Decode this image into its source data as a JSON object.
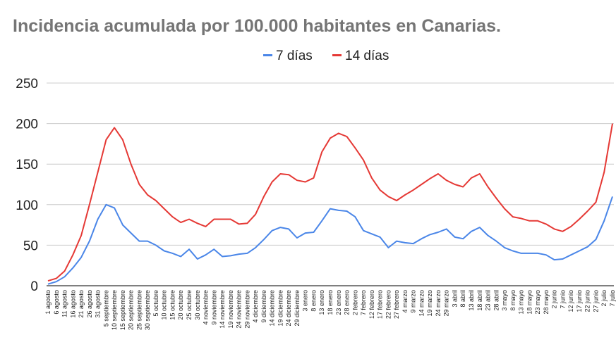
{
  "chart_data": {
    "type": "line",
    "title": "Incidencia acumulada por 100.000 habitantes en Canarias.",
    "xlabel": "",
    "ylabel": "",
    "ylim": [
      0,
      250
    ],
    "yticks": [
      0,
      50,
      100,
      150,
      200,
      250
    ],
    "grid": true,
    "legend_position": "top-center",
    "x": [
      "1 agosto",
      "6 agosto",
      "11 agosto",
      "16 agosto",
      "21 agosto",
      "26 agosto",
      "31 agosto",
      "5 septiembre",
      "10 septiembre",
      "15 septiembre",
      "20 septiembre",
      "25 septiembre",
      "30 septiembre",
      "5 octubre",
      "10 octubre",
      "15 octubre",
      "20 octubre",
      "25 octubre",
      "30 octubre",
      "4 noviembre",
      "9 noviembre",
      "14 noviembre",
      "19 noviembre",
      "24 noviembre",
      "29 noviembre",
      "4 diciembre",
      "9 diciembre",
      "14 diciembre",
      "19 diciembre",
      "24 diciembre",
      "29 diciembre",
      "3 enero",
      "8 enero",
      "13 enero",
      "18 enero",
      "23 enero",
      "28 enero",
      "2 febrero",
      "7 febrero",
      "12 febrero",
      "17 febrero",
      "22 febrero",
      "27 febrero",
      "4 marzo",
      "9 marzo",
      "14 marzo",
      "19 marzo",
      "24 marzo",
      "29 marzo",
      "3 abril",
      "8 abril",
      "13 abril",
      "18 abril",
      "23 abril",
      "28 abril",
      "3 mayo",
      "8 mayo",
      "13 mayo",
      "18 mayo",
      "23 mayo",
      "28 mayo",
      "2 junio",
      "7 junio",
      "12 junio",
      "17 junio",
      "22 junio",
      "27 junio",
      "2 julio",
      "7 julio"
    ],
    "series": [
      {
        "name": "7 días",
        "color": "#4a86e8",
        "values": [
          2,
          5,
          11,
          22,
          35,
          55,
          82,
          100,
          96,
          75,
          65,
          55,
          55,
          50,
          43,
          40,
          36,
          45,
          33,
          38,
          45,
          36,
          37,
          39,
          40,
          47,
          57,
          68,
          72,
          70,
          59,
          65,
          66,
          80,
          95,
          93,
          92,
          85,
          68,
          64,
          60,
          47,
          55,
          53,
          52,
          58,
          63,
          66,
          70,
          60,
          58,
          67,
          72,
          62,
          55,
          47,
          43,
          40,
          40,
          40,
          38,
          32,
          33,
          38,
          43,
          48,
          57,
          80,
          110
        ]
      },
      {
        "name": "14 días",
        "color": "#e53935",
        "values": [
          6,
          9,
          18,
          38,
          62,
          100,
          140,
          180,
          195,
          180,
          150,
          125,
          112,
          105,
          95,
          85,
          78,
          82,
          77,
          73,
          82,
          82,
          82,
          76,
          77,
          88,
          110,
          128,
          138,
          137,
          130,
          128,
          133,
          165,
          182,
          188,
          184,
          170,
          155,
          133,
          118,
          110,
          105,
          112,
          118,
          125,
          132,
          138,
          130,
          125,
          122,
          133,
          138,
          122,
          108,
          95,
          85,
          83,
          80,
          80,
          76,
          70,
          67,
          73,
          82,
          92,
          103,
          140,
          200
        ]
      }
    ]
  }
}
